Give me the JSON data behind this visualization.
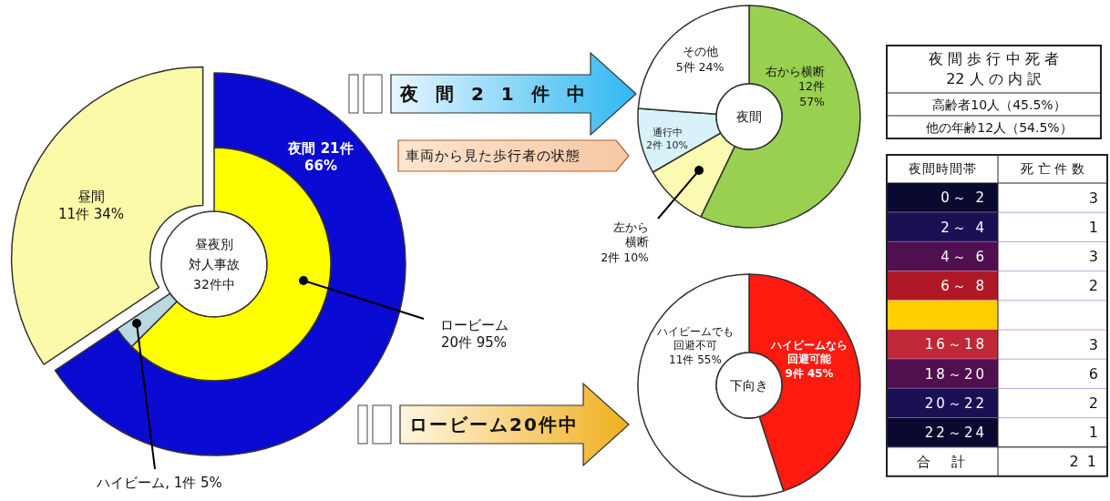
{
  "chart_data": [
    {
      "type": "donut",
      "title": "昼夜別対人事故32件中",
      "categories": [
        "昼間",
        "夜間"
      ],
      "values": [
        11,
        21
      ],
      "colors": [
        "#fafaa8",
        "#0a0ad2"
      ],
      "value_labels": [
        "11件 34%",
        "21件\n66%"
      ]
    },
    {
      "type": "donut",
      "categories": [
        "ロービーム",
        "ハイビーム"
      ],
      "values": [
        20,
        1
      ],
      "colors": [
        "#ffff00",
        "#b8d8e2"
      ],
      "value_labels": [
        "20件 95%",
        ", 1件 5%"
      ]
    },
    {
      "type": "donut",
      "title": "夜間",
      "categories": [
        "右から横断",
        "左から横断",
        "通行中",
        "その他"
      ],
      "values": [
        12,
        2,
        2,
        5
      ],
      "colors": [
        "#9ad050",
        "#fafab0",
        "#d8f2fa",
        "#ffffff"
      ],
      "value_labels": [
        "12件\n57%",
        "2件 10%",
        "2件 10%",
        "5件 24%"
      ],
      "annotations": [
        "夜 間 2 1 件 中",
        "車両から見た歩行者の状態"
      ]
    },
    {
      "type": "donut",
      "title": "下向き",
      "categories": [
        "ハイビームなら回避可能",
        "ハイビームでも回避不可"
      ],
      "values": [
        9,
        11
      ],
      "colors": [
        "#ff1a10",
        "#ffffff"
      ],
      "value_labels": [
        "9件 45%",
        "11件 55%"
      ],
      "annotations": [
        "ロービーム20件中"
      ]
    },
    {
      "type": "other",
      "title": "夜 間 歩 行 中 死 者\n22 人 の 内 訳",
      "annotations": [
        "高齢者10人（45.5%）",
        "他の年齢12人（54.5%）"
      ]
    },
    {
      "type": "other",
      "xlabel": "夜間時間帯",
      "ylabel": "死 亡 件 数",
      "categories": [
        "0～ 2",
        "2～ 4",
        "4～ 6",
        "6～ 8",
        null,
        "16～18",
        "18～20",
        "20～22",
        "22～24"
      ],
      "values": [
        3,
        1,
        3,
        2,
        null,
        3,
        6,
        2,
        1
      ],
      "data_labels": true,
      "colors": [
        "#0a0a30",
        "#1c1055",
        "#501050",
        "#b01828",
        "#ffd000",
        "#c02838",
        "#501050",
        "#1c1055",
        "#0a0a30"
      ],
      "annotations": [
        "合　計",
        "2 1"
      ]
    }
  ]
}
